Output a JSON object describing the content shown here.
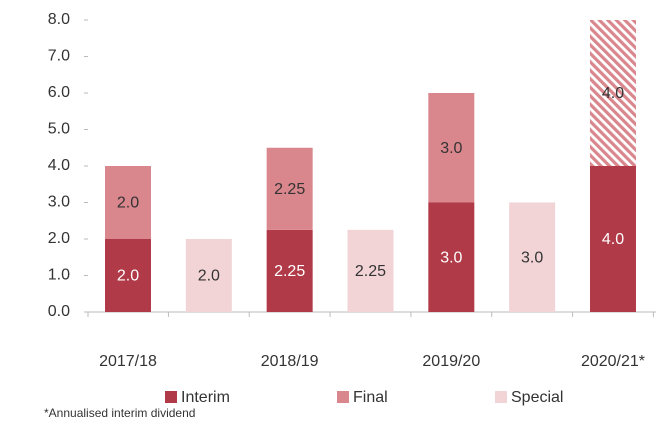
{
  "chart_data": {
    "type": "stacked-bar",
    "categories": [
      "2017/18",
      null,
      "2018/19",
      null,
      "2019/20",
      null,
      "2020/21*"
    ],
    "series": [
      {
        "name": "Interim",
        "color": "#b03a48",
        "label_color": "#ffffff",
        "values": [
          2.0,
          null,
          2.25,
          null,
          3.0,
          null,
          4.0
        ],
        "value_labels": [
          "2.0",
          null,
          "2.25",
          null,
          "3.0",
          null,
          "4.0"
        ]
      },
      {
        "name": "Final",
        "color": "#d9868d",
        "label_color": "#333333",
        "values": [
          2.0,
          null,
          2.25,
          null,
          3.0,
          null,
          4.0
        ],
        "value_labels": [
          "2.0",
          null,
          "2.25",
          null,
          "3.0",
          null,
          "4.0"
        ],
        "hatched": [
          false,
          false,
          false,
          false,
          false,
          false,
          true
        ]
      },
      {
        "name": "Special",
        "color": "#f2d4d7",
        "label_color": "#333333",
        "values": [
          null,
          2.0,
          null,
          2.25,
          null,
          3.0,
          null
        ],
        "value_labels": [
          null,
          "2.0",
          null,
          "2.25",
          null,
          "3.0",
          null
        ]
      }
    ],
    "ylim": [
      0,
      8
    ],
    "yticks": [
      {
        "value": 0,
        "label": "0.0"
      },
      {
        "value": 1,
        "label": "1.0"
      },
      {
        "value": 2,
        "label": "2.0"
      },
      {
        "value": 3,
        "label": "3.0"
      },
      {
        "value": 4,
        "label": "4.0"
      },
      {
        "value": 5,
        "label": "5.0"
      },
      {
        "value": 6,
        "label": "6.0"
      },
      {
        "value": 7,
        "label": "7.0"
      },
      {
        "value": 8,
        "label": "8.0"
      }
    ],
    "footnote": "*Annualised interim dividend"
  }
}
